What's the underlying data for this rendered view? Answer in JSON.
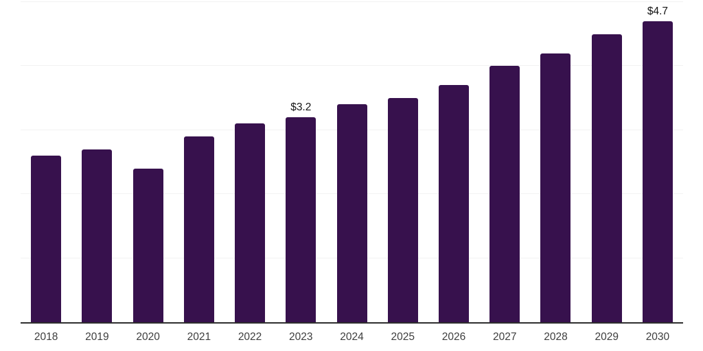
{
  "chart_data": {
    "type": "bar",
    "categories": [
      "2018",
      "2019",
      "2020",
      "2021",
      "2022",
      "2023",
      "2024",
      "2025",
      "2026",
      "2027",
      "2028",
      "2029",
      "2030"
    ],
    "values": [
      2.6,
      2.7,
      2.4,
      2.9,
      3.1,
      3.2,
      3.4,
      3.5,
      3.7,
      4.0,
      4.2,
      4.5,
      4.7
    ],
    "data_labels": {
      "2023": "$3.2",
      "2030": "$4.7"
    },
    "title": "",
    "xlabel": "",
    "ylabel": "",
    "ylim": [
      0,
      5
    ],
    "grid": true,
    "gridline_values": [
      1,
      2,
      3,
      4,
      5
    ],
    "y_tick_labels_visible": false,
    "legend_position": "none",
    "colors": {
      "bar": "#37114d",
      "axis_line": "#2e2e2e",
      "gridline": "#f2f2f2",
      "tick_label": "#3d3d3d",
      "data_label": "#141414",
      "background": "#ffffff"
    }
  }
}
